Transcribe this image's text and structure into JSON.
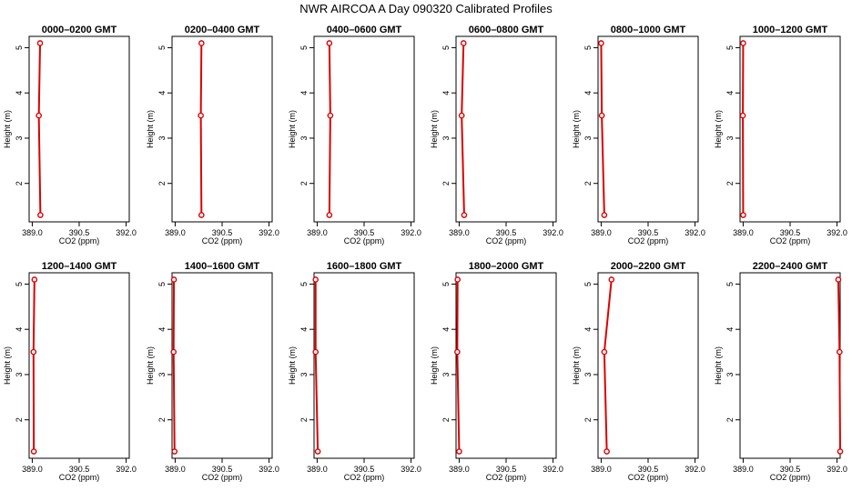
{
  "title": "NWR AIRCOA A  Day 090320  Calibrated Profiles",
  "colors": {
    "line": "#dd0000",
    "frame": "#000000",
    "background": "#ffffff"
  },
  "chart_data": [
    {
      "type": "line",
      "title": "0000–0200 GMT",
      "xlabel": "CO2 (ppm)",
      "ylabel": "Height (m)",
      "xlim": [
        388.9,
        392.1
      ],
      "ylim": [
        1.15,
        5.25
      ],
      "xticks": [
        "389.0",
        "390.5",
        "392.0"
      ],
      "yticks": [
        "2",
        "3",
        "4",
        "5"
      ],
      "x": [
        389.26,
        389.21,
        389.25
      ],
      "y": [
        1.3,
        3.5,
        5.1
      ]
    },
    {
      "type": "line",
      "title": "0200–0400 GMT",
      "xlabel": "CO2 (ppm)",
      "ylabel": "Height (m)",
      "xlim": [
        388.9,
        392.1
      ],
      "ylim": [
        1.15,
        5.25
      ],
      "xticks": [
        "389.0",
        "390.5",
        "392.0"
      ],
      "yticks": [
        "2",
        "3",
        "4",
        "5"
      ],
      "x": [
        389.84,
        389.82,
        389.84
      ],
      "y": [
        1.3,
        3.5,
        5.1
      ]
    },
    {
      "type": "line",
      "title": "0400–0600 GMT",
      "xlabel": "CO2 (ppm)",
      "ylabel": "Height (m)",
      "xlim": [
        388.9,
        392.1
      ],
      "ylim": [
        1.15,
        5.25
      ],
      "xticks": [
        "389.0",
        "390.5",
        "392.0"
      ],
      "yticks": [
        "2",
        "3",
        "4",
        "5"
      ],
      "x": [
        389.39,
        389.42,
        389.39
      ],
      "y": [
        1.3,
        3.5,
        5.1
      ]
    },
    {
      "type": "line",
      "title": "0600–0800 GMT",
      "xlabel": "CO2 (ppm)",
      "ylabel": "Height (m)",
      "xlim": [
        388.9,
        392.1
      ],
      "ylim": [
        1.15,
        5.25
      ],
      "xticks": [
        "389.0",
        "390.5",
        "392.0"
      ],
      "yticks": [
        "2",
        "3",
        "4",
        "5"
      ],
      "x": [
        389.16,
        389.08,
        389.14
      ],
      "y": [
        1.3,
        3.5,
        5.1
      ]
    },
    {
      "type": "line",
      "title": "0800–1000 GMT",
      "xlabel": "CO2 (ppm)",
      "ylabel": "Height (m)",
      "xlim": [
        388.9,
        392.1
      ],
      "ylim": [
        1.15,
        5.25
      ],
      "xticks": [
        "389.0",
        "390.5",
        "392.0"
      ],
      "yticks": [
        "2",
        "3",
        "4",
        "5"
      ],
      "x": [
        389.1,
        389.02,
        389.0
      ],
      "y": [
        1.3,
        3.5,
        5.1
      ]
    },
    {
      "type": "line",
      "title": "1000–1200 GMT",
      "xlabel": "CO2 (ppm)",
      "ylabel": "Height (m)",
      "xlim": [
        388.9,
        392.1
      ],
      "ylim": [
        1.15,
        5.25
      ],
      "xticks": [
        "389.0",
        "390.5",
        "392.0"
      ],
      "yticks": [
        "2",
        "3",
        "4",
        "5"
      ],
      "x": [
        389.0,
        388.99,
        389.0
      ],
      "y": [
        1.3,
        3.5,
        5.1
      ]
    },
    {
      "type": "line",
      "title": "1200–1400 GMT",
      "xlabel": "CO2 (ppm)",
      "ylabel": "Height (m)",
      "xlim": [
        388.9,
        392.1
      ],
      "ylim": [
        1.15,
        5.25
      ],
      "xticks": [
        "389.0",
        "390.5",
        "392.0"
      ],
      "yticks": [
        "2",
        "3",
        "4",
        "5"
      ],
      "x": [
        389.05,
        389.04,
        389.07
      ],
      "y": [
        1.3,
        3.5,
        5.1
      ]
    },
    {
      "type": "line",
      "title": "1400–1600 GMT",
      "xlabel": "CO2 (ppm)",
      "ylabel": "Height (m)",
      "xlim": [
        388.9,
        392.1
      ],
      "ylim": [
        1.15,
        5.25
      ],
      "xticks": [
        "389.0",
        "390.5",
        "392.0"
      ],
      "yticks": [
        "2",
        "3",
        "4",
        "5"
      ],
      "x": [
        388.98,
        388.95,
        388.96
      ],
      "y": [
        1.3,
        3.5,
        5.1
      ]
    },
    {
      "type": "line",
      "title": "1600–1800 GMT",
      "xlabel": "CO2 (ppm)",
      "ylabel": "Height (m)",
      "xlim": [
        388.9,
        392.1
      ],
      "ylim": [
        1.15,
        5.25
      ],
      "xticks": [
        "389.0",
        "390.5",
        "392.0"
      ],
      "yticks": [
        "2",
        "3",
        "4",
        "5"
      ],
      "x": [
        389.02,
        388.95,
        388.95
      ],
      "y": [
        1.3,
        3.5,
        5.1
      ]
    },
    {
      "type": "line",
      "title": "1800–2000 GMT",
      "xlabel": "CO2 (ppm)",
      "ylabel": "Height (m)",
      "xlim": [
        388.9,
        392.1
      ],
      "ylim": [
        1.15,
        5.25
      ],
      "xticks": [
        "389.0",
        "390.5",
        "392.0"
      ],
      "yticks": [
        "2",
        "3",
        "4",
        "5"
      ],
      "x": [
        389.0,
        388.94,
        388.95
      ],
      "y": [
        1.3,
        3.5,
        5.1
      ]
    },
    {
      "type": "line",
      "title": "2000–2200 GMT",
      "xlabel": "CO2 (ppm)",
      "ylabel": "Height (m)",
      "xlim": [
        388.9,
        392.1
      ],
      "ylim": [
        1.15,
        5.25
      ],
      "xticks": [
        "389.0",
        "390.5",
        "392.0"
      ],
      "yticks": [
        "2",
        "3",
        "4",
        "5"
      ],
      "x": [
        389.18,
        389.1,
        389.33
      ],
      "y": [
        1.3,
        3.5,
        5.1
      ]
    },
    {
      "type": "line",
      "title": "2200–2400 GMT",
      "xlabel": "CO2 (ppm)",
      "ylabel": "Height (m)",
      "xlim": [
        388.9,
        392.1
      ],
      "ylim": [
        1.15,
        5.25
      ],
      "xticks": [
        "389.0",
        "390.5",
        "392.0"
      ],
      "yticks": [
        "2",
        "3",
        "4",
        "5"
      ],
      "x": [
        392.1,
        392.08,
        392.04
      ],
      "y": [
        1.3,
        3.5,
        5.1
      ]
    }
  ]
}
